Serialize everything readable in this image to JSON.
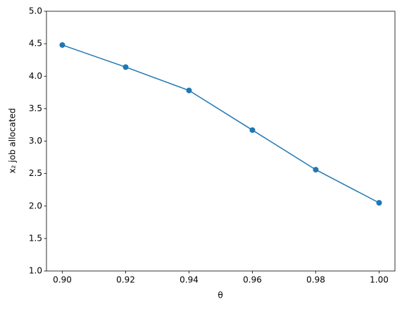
{
  "chart_data": {
    "type": "line",
    "xlabel": "θ",
    "ylabel": "x₂ job allocated",
    "x": [
      0.9,
      0.92,
      0.94,
      0.96,
      0.98,
      1.0
    ],
    "series": [
      {
        "color": "#1f77b4",
        "values": [
          4.48,
          4.14,
          3.78,
          3.17,
          2.56,
          2.05
        ]
      }
    ],
    "xlim": [
      0.895,
      1.005
    ],
    "xticks": [
      {
        "value": 0.9,
        "label": "0.90"
      },
      0.92,
      0.94,
      0.96,
      0.98,
      {
        "value": 1.0,
        "label": "1.00"
      }
    ],
    "ylim": [
      1.0,
      5.0
    ],
    "yticks": [
      {
        "value": 1.0,
        "label": "1.0"
      },
      1.5,
      {
        "value": 2.0,
        "label": "2.0"
      },
      2.5,
      {
        "value": 3.0,
        "label": "3.0"
      },
      3.5,
      {
        "value": 4.0,
        "label": "4.0"
      },
      4.5,
      {
        "value": 5.0,
        "label": "5.0"
      }
    ],
    "markers": true,
    "grid": false
  }
}
